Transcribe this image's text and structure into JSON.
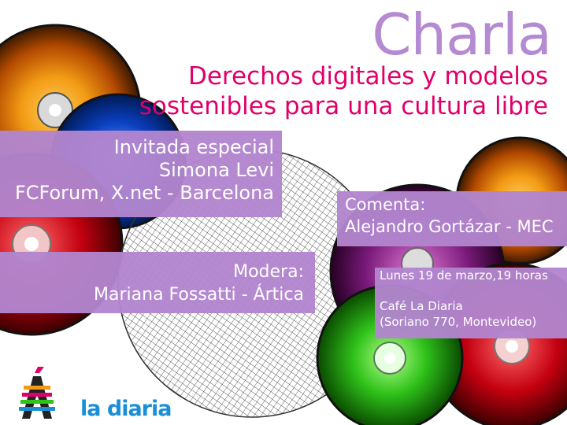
{
  "poster": {
    "title": "Charla",
    "subtitle_line1": "Derechos digitales y modelos",
    "subtitle_line2": "sostenibles para una cultura libre",
    "guest": {
      "label": "Invitada especial",
      "name": "Simona Levi",
      "affiliation": "FCForum, X.net - Barcelona"
    },
    "comment": {
      "label": "Comenta:",
      "name": "Alejandro Gortázar - MEC"
    },
    "moderator": {
      "label": "Modera:",
      "name": "Mariana Fossatti - Ártica"
    },
    "event": {
      "datetime": "Lunes 19 de marzo,19 horas",
      "venue": "Café La Diaria",
      "address": "(Soriano 770, Montevideo)"
    },
    "logo": {
      "glyph": "Á",
      "brand": "la diaria"
    }
  },
  "colors": {
    "title": "#b48ad2",
    "subtitle": "#e0006a",
    "box": "#b285ce",
    "brand": "#1a8fd6"
  }
}
